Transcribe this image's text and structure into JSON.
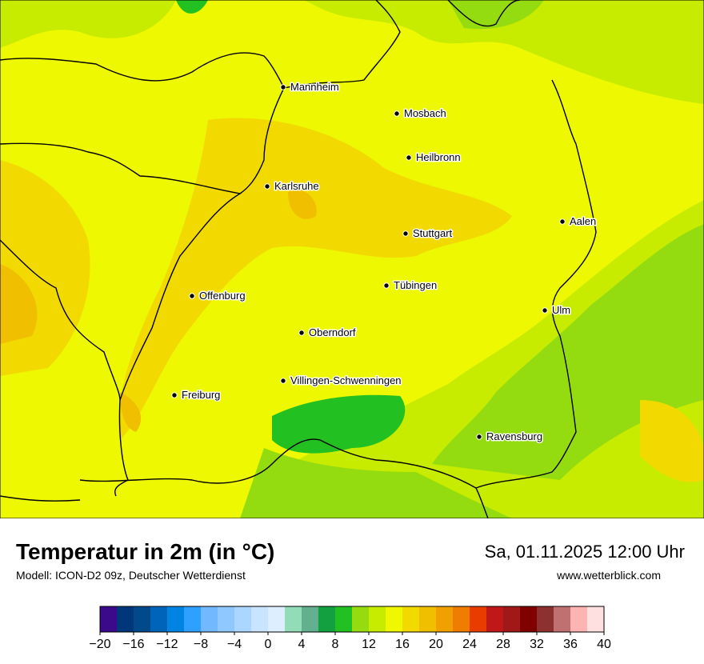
{
  "header": {
    "title": "Temperatur in 2m (in °C)",
    "model": "Modell: ICON-D2 09z, Deutscher Wetterdienst",
    "datetime": "Sa, 01.11.2025 12:00 Uhr",
    "website": "www.wetterblick.com"
  },
  "cities": [
    "Mannheim",
    "Mosbach",
    "Heilbronn",
    "Karlsruhe",
    "Aalen",
    "Stuttgart",
    "Tübingen",
    "Offenburg",
    "Ulm",
    "Oberndorf",
    "Villingen-Schwenningen",
    "Freiburg",
    "Ravensburg"
  ],
  "colorbar": {
    "levels": [
      -20,
      -18,
      -16,
      -14,
      -12,
      -10,
      -8,
      -6,
      -4,
      -2,
      0,
      2,
      4,
      6,
      8,
      10,
      12,
      14,
      16,
      18,
      20,
      22,
      24,
      26,
      28,
      30,
      32,
      34,
      36,
      38,
      40
    ],
    "colors": [
      "#3a0a8a",
      "#00377a",
      "#004a8c",
      "#0064b8",
      "#0084e4",
      "#2ea0ff",
      "#72b8ff",
      "#8ec8ff",
      "#aad6ff",
      "#c8e4ff",
      "#dceeff",
      "#92dcb8",
      "#62b08e",
      "#12a040",
      "#22c020",
      "#94dc10",
      "#c8ec00",
      "#f0f800",
      "#f2da00",
      "#f0c000",
      "#f0a000",
      "#f07c00",
      "#e83c00",
      "#c01818",
      "#a01818",
      "#800000",
      "#8c3030",
      "#c07070",
      "#ffb4b4",
      "#ffe0e0"
    ],
    "ticks": [
      {
        "value": -20,
        "label": "−20"
      },
      {
        "value": -16,
        "label": "−16"
      },
      {
        "value": -12,
        "label": "−12"
      },
      {
        "value": -8,
        "label": "−8"
      },
      {
        "value": -4,
        "label": "−4"
      },
      0,
      4,
      8,
      12,
      16,
      20,
      24,
      28,
      32,
      36,
      40
    ]
  }
}
